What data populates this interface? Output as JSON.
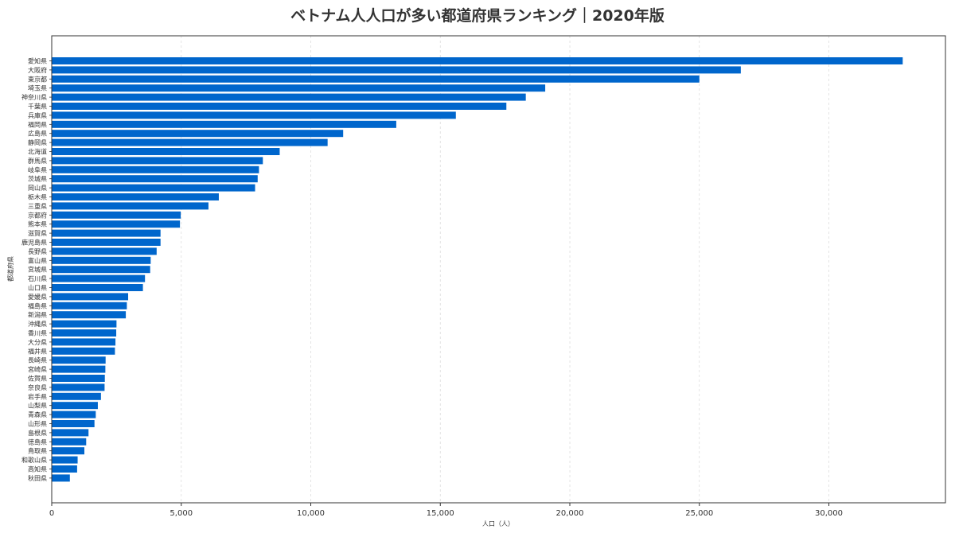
{
  "chart_data": {
    "type": "bar",
    "orientation": "horizontal",
    "title": "ベトナム人人口が多い都道府県ランキング｜2020年版",
    "xlabel": "人口（人）",
    "ylabel": "都道府県",
    "xlim": [
      0,
      34500
    ],
    "x_ticks": [
      0,
      5000,
      10000,
      15000,
      20000,
      25000,
      30000
    ],
    "x_tick_labels": [
      "0",
      "5,000",
      "10,000",
      "15,000",
      "20,000",
      "25,000",
      "30,000"
    ],
    "grid": "vertical dashed",
    "bar_color": "#0066cc",
    "categories": [
      "愛知県",
      "大阪府",
      "東京都",
      "埼玉県",
      "神奈川県",
      "千葉県",
      "兵庫県",
      "福岡県",
      "広島県",
      "静岡県",
      "北海道",
      "群馬県",
      "岐阜県",
      "茨城県",
      "岡山県",
      "栃木県",
      "三重県",
      "京都府",
      "熊本県",
      "滋賀県",
      "鹿児島県",
      "長野県",
      "富山県",
      "宮城県",
      "石川県",
      "山口県",
      "愛媛県",
      "福島県",
      "新潟県",
      "沖縄県",
      "香川県",
      "大分県",
      "福井県",
      "長崎県",
      "宮崎県",
      "佐賀県",
      "奈良県",
      "岩手県",
      "山梨県",
      "青森県",
      "山形県",
      "島根県",
      "徳島県",
      "鳥取県",
      "和歌山県",
      "高知県",
      "秋田県"
    ],
    "values": [
      32850,
      26600,
      25000,
      19050,
      18300,
      17550,
      15600,
      13300,
      11250,
      10650,
      8800,
      8150,
      8000,
      7950,
      7850,
      6450,
      6050,
      4980,
      4950,
      4200,
      4200,
      4050,
      3820,
      3800,
      3600,
      3520,
      2950,
      2900,
      2860,
      2500,
      2490,
      2460,
      2440,
      2080,
      2070,
      2050,
      2040,
      1900,
      1780,
      1700,
      1650,
      1420,
      1330,
      1260,
      1000,
      980,
      700
    ]
  }
}
